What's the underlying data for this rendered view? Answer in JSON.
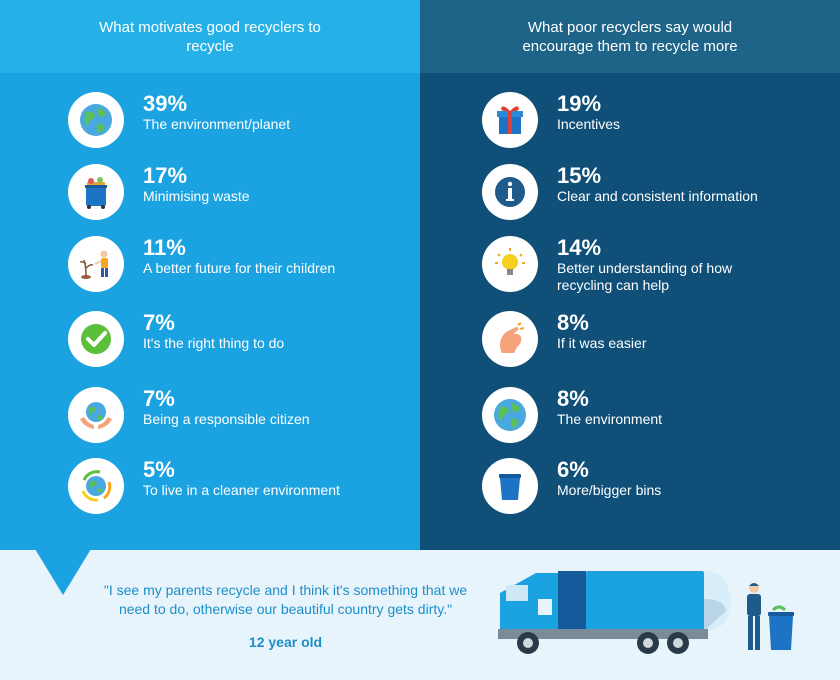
{
  "left": {
    "heading": "What motivates good recyclers to recycle",
    "items": [
      {
        "pct": "39%",
        "label": "The environment/planet",
        "icon": "globe-icon"
      },
      {
        "pct": "17%",
        "label": "Minimising waste",
        "icon": "bin-full-icon"
      },
      {
        "pct": "11%",
        "label": "A better future for their children",
        "icon": "child-planting-icon"
      },
      {
        "pct": "7%",
        "label": "It's the right thing to do",
        "icon": "checkmark-icon"
      },
      {
        "pct": "7%",
        "label": "Being a responsible citizen",
        "icon": "globe-in-hands-icon"
      },
      {
        "pct": "5%",
        "label": "To live in a cleaner environment",
        "icon": "recycle-globe-icon"
      }
    ]
  },
  "right": {
    "heading": "What poor recyclers say would encourage them to recycle more",
    "items": [
      {
        "pct": "19%",
        "label": "Incentives",
        "icon": "gift-icon"
      },
      {
        "pct": "15%",
        "label": "Clear and consistent information",
        "icon": "info-icon"
      },
      {
        "pct": "14%",
        "label": "Better understanding of how recycling can help",
        "icon": "lightbulb-icon"
      },
      {
        "pct": "8%",
        "label": "If it was easier",
        "icon": "snap-fingers-icon"
      },
      {
        "pct": "8%",
        "label": "The environment",
        "icon": "globe-icon"
      },
      {
        "pct": "6%",
        "label": "More/bigger bins",
        "icon": "bin-icon"
      }
    ]
  },
  "quote": {
    "text": "\"I see my parents recycle and I think it's something that we need to do, otherwise our beautiful country gets dirty.\"",
    "attribution": "12 year old"
  },
  "colors": {
    "left_bg": "#1aa3e0",
    "right_bg": "#0f4f78",
    "quote_text": "#1c8ec9"
  }
}
